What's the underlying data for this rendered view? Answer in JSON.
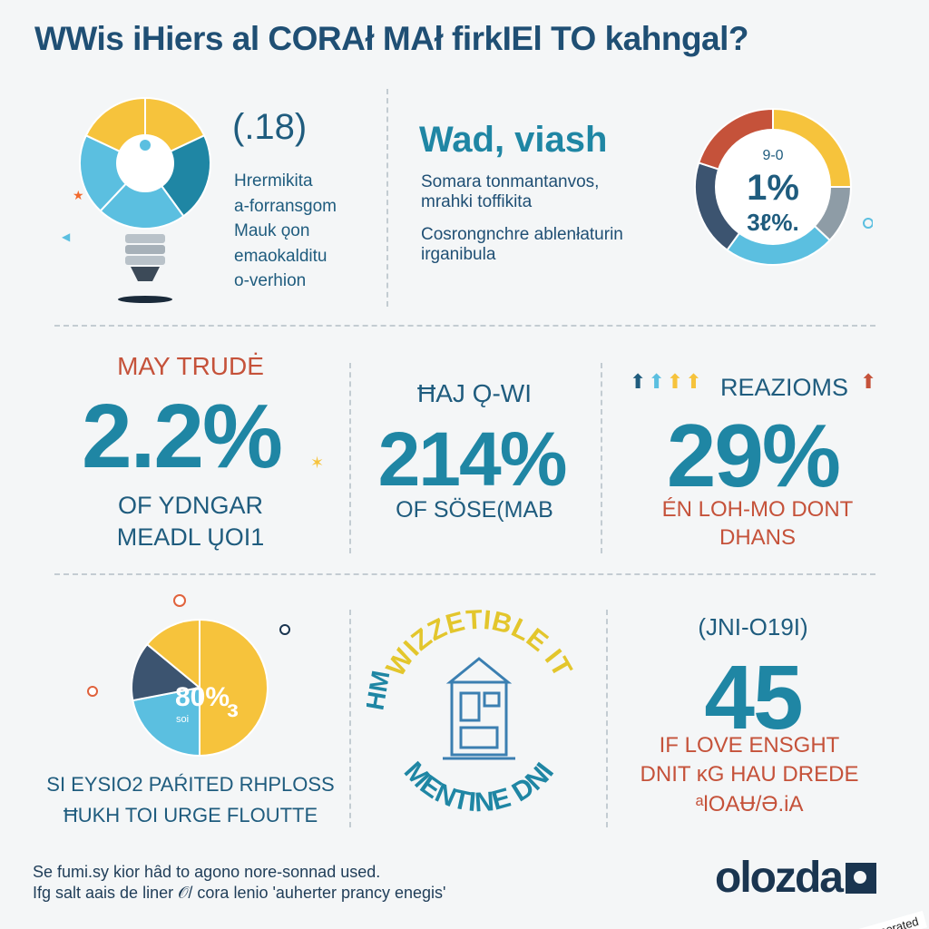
{
  "title": "WWis iHiers al CORAł MAł firkIEl TO kahngal?",
  "section1": {
    "stat": "(.18)",
    "lines": [
      "Hrermikita",
      "a-forransgom",
      "Mauk ǫon",
      "emaokalditu",
      "o-verhion"
    ]
  },
  "section2": {
    "heading": "Wad, viash",
    "para1": [
      "Somara tonmantanvos,",
      "mrahki toffikita"
    ],
    "para2": [
      "Cosrongnchre ablenłaturin",
      "irganibula"
    ],
    "donut_top": "9-0",
    "donut_mid": "1%",
    "donut_bot": "3ℓ%."
  },
  "stat1": {
    "label": "MAY TRUDĖ",
    "value": "2.2%",
    "sub": [
      "OF YDNGAR",
      "MEADL ŲOI1"
    ]
  },
  "stat2": {
    "label": "ĦAJ Ǫ-WI",
    "value": "214%",
    "sub": [
      "OF SÖSE(MAB"
    ]
  },
  "stat3": {
    "label": "REAZIOMS",
    "value": "29%",
    "sub": [
      "ÉN LOH-MO DONT",
      "DHANS"
    ]
  },
  "section4": {
    "pie_label": "80%",
    "pie_sub": "ɜ",
    "pie_small": "soi",
    "caption": [
      "SI EYSIO2 PAŔITED RHPLOSS",
      "ĦUKH TOI URGE FLOUTTE"
    ]
  },
  "badge": {
    "arc_top": "WIZZETIBLE IT",
    "arc_left": "HM",
    "arc_bottom": "MENTINE DNI"
  },
  "stat4": {
    "label": "(JNI-O19I)",
    "value": "45",
    "sub": [
      "IF LOVE ENSGHT",
      "DNIT ĸG HAU DREDE",
      "ᵃlOAɄ/Ə.iA"
    ]
  },
  "footer": [
    "Se fumi.sy kior hȃd to agono nore-sonnad used.",
    "Ifg  salt aais de liner 𝒪/ cora lenio 'auherter prancy enegis'"
  ],
  "logo": "olozda",
  "ai_badge": "AI generated",
  "colors": {
    "teal": "#1f86a4",
    "navy": "#1f5c7e",
    "yellow": "#f6c33c",
    "lightblue": "#5bbfe0",
    "red": "#c5523a",
    "slate": "#3c5470",
    "grey": "#8e9ca6"
  },
  "chart_data": [
    {
      "type": "pie",
      "values": [
        18,
        22,
        22,
        20,
        18
      ]
    },
    {
      "type": "pie",
      "values": [
        25,
        12,
        23,
        20,
        20
      ]
    },
    {
      "type": "pie",
      "values": [
        50,
        22,
        14,
        14
      ]
    }
  ]
}
